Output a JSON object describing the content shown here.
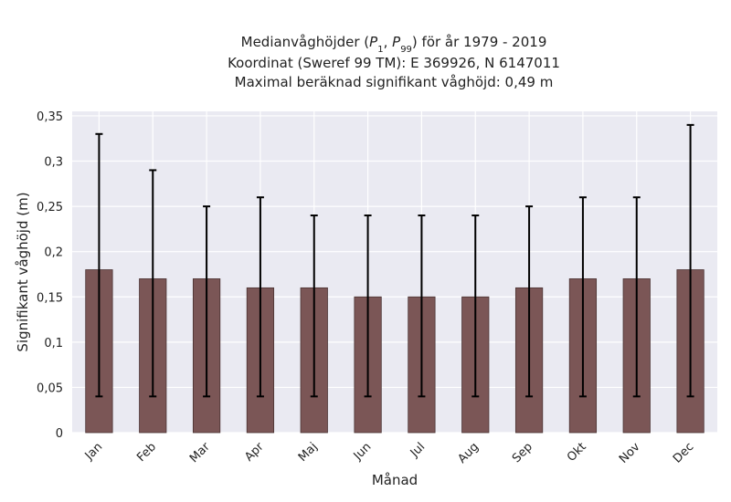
{
  "chart_data": {
    "type": "bar",
    "title_lines": [
      "Medianvåghöjder (P1, P99) för år 1979 - 2019",
      "Koordinat (Sweref 99 TM): E 369926, N 6147011",
      "Maximal beräknad signifikant våghöjd: 0,49 m"
    ],
    "xlabel": "Månad",
    "ylabel": "Signifikant våghöjd (m)",
    "categories": [
      "Jan",
      "Feb",
      "Mar",
      "Apr",
      "Maj",
      "Jun",
      "Jul",
      "Aug",
      "Sep",
      "Okt",
      "Nov",
      "Dec"
    ],
    "values": [
      0.18,
      0.17,
      0.17,
      0.16,
      0.16,
      0.15,
      0.15,
      0.15,
      0.16,
      0.17,
      0.17,
      0.18
    ],
    "p1": [
      0.04,
      0.04,
      0.04,
      0.04,
      0.04,
      0.04,
      0.04,
      0.04,
      0.04,
      0.04,
      0.04,
      0.04
    ],
    "p99": [
      0.33,
      0.29,
      0.25,
      0.26,
      0.24,
      0.24,
      0.24,
      0.24,
      0.25,
      0.26,
      0.26,
      0.34
    ],
    "ylim": [
      0,
      0.355
    ],
    "yticks": [
      0,
      0.05,
      0.1,
      0.15,
      0.2,
      0.25,
      0.3,
      0.35
    ],
    "ytick_labels": [
      "0",
      "0,05",
      "0,1",
      "0,15",
      "0,2",
      "0,25",
      "0,3",
      "0,35"
    ],
    "grid": true,
    "colors": {
      "bar": "#7b5656",
      "bar_edge": "#4a3333",
      "background": "#eaeaf2",
      "grid": "#ffffff",
      "error": "#000000"
    }
  }
}
